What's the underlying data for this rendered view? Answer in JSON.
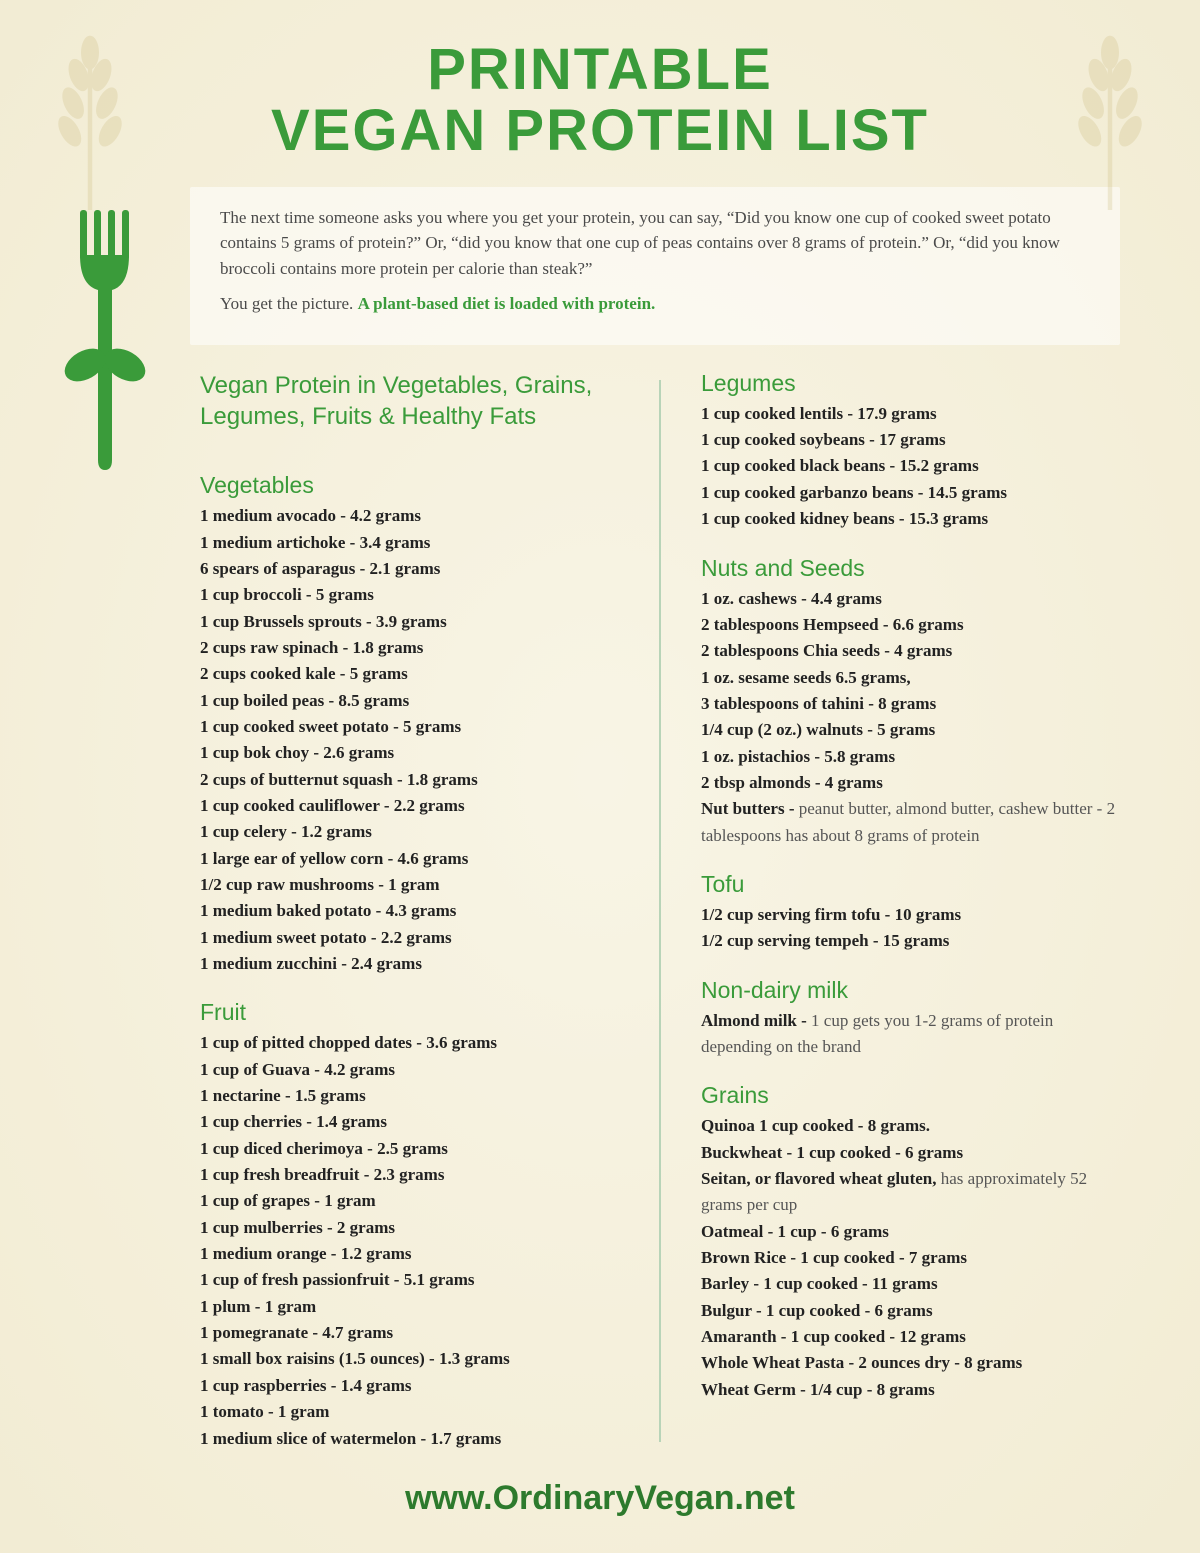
{
  "title_line1": "PRINTABLE",
  "title_line2": "VEGAN PROTEIN LIST",
  "intro_p1": "The next time someone asks you where you get your protein, you can say, “Did you know one cup of cooked sweet potato contains 5 grams of protein?” Or, “did you know that one cup of peas contains over 8 grams of protein.” Or, “did you know broccoli contains more protein per calorie than steak?”",
  "intro_p2a": "You get the picture. ",
  "intro_p2b": "A plant-based diet is loaded with protein.",
  "subtitle": "Vegan Protein in Vegetables, Grains, Legumes, Fruits & Healthy Fats",
  "footer": "www.OrdinaryVegan.net",
  "colors": {
    "green": "#3a9b3a",
    "bg": "#f5f0da",
    "text": "#222222"
  },
  "sections": {
    "vegetables": {
      "head": "Vegetables",
      "items": [
        "1 medium avocado - 4.2 grams",
        "1 medium artichoke - 3.4 grams",
        "6 spears of asparagus - 2.1 grams",
        "1 cup broccoli - 5 grams",
        "1 cup Brussels sprouts - 3.9 grams",
        "2 cups raw spinach - 1.8 grams",
        "2 cups cooked kale - 5 grams",
        "1 cup boiled peas - 8.5 grams",
        "1 cup cooked sweet potato - 5 grams",
        "1 cup bok choy - 2.6 grams",
        "2 cups of butternut squash - 1.8 grams",
        "1 cup cooked cauliflower - 2.2 grams",
        "1 cup celery - 1.2 grams",
        "1 large ear of yellow corn - 4.6 grams",
        "1/2 cup raw mushrooms - 1 gram",
        "1 medium baked potato - 4.3 grams",
        "1 medium sweet potato - 2.2 grams",
        "1 medium zucchini - 2.4 grams"
      ]
    },
    "fruit": {
      "head": "Fruit",
      "items": [
        "1 cup of  pitted chopped dates - 3.6 grams",
        "1 cup of Guava - 4.2 grams",
        "1 nectarine - 1.5 grams",
        "1 cup cherries  - 1.4 grams",
        "1 cup diced cherimoya - 2.5 grams",
        "1 cup fresh breadfruit - 2.3 grams",
        "1 cup of grapes - 1 gram",
        "1 cup mulberries - 2 grams",
        "1 medium orange - 1.2 grams",
        "1 cup of fresh passionfruit - 5.1 grams",
        "1 plum - 1 gram",
        "1 pomegranate - 4.7 grams",
        "1 small box raisins (1.5 ounces) - 1.3 grams",
        "1 cup raspberries - 1.4 grams",
        "1 tomato - 1 gram",
        "1 medium slice of watermelon - 1.7 grams"
      ]
    },
    "legumes": {
      "head": "Legumes",
      "items": [
        "1 cup cooked lentils - 17.9 grams",
        "1 cup cooked soybeans - 17 grams",
        "1 cup cooked black beans - 15.2 grams",
        "1 cup cooked garbanzo beans - 14.5 grams",
        "1 cup cooked kidney beans - 15.3 grams"
      ]
    },
    "nuts": {
      "head": "Nuts and Seeds",
      "items": [
        "1 oz. cashews - 4.4 grams",
        "2 tablespoons Hempseed - 6.6 grams",
        "2 tablespoons Chia seeds - 4 grams",
        "1 oz. sesame seeds 6.5 grams,",
        "3 tablespoons of tahini - 8 grams",
        "1/4 cup (2 oz.) walnuts - 5 grams",
        "1 oz. pistachios - 5.8 grams",
        "2 tbsp almonds - 4 grams"
      ],
      "butter_label": "Nut butters - ",
      "butter_note": "peanut butter, almond butter, cashew butter - 2 tablespoons has about 8 grams of protein"
    },
    "tofu": {
      "head": "Tofu",
      "items": [
        "1/2 cup serving firm tofu - 10 grams",
        "1/2 cup serving  tempeh - 15 grams"
      ]
    },
    "milk": {
      "head": "Non-dairy milk",
      "label": "Almond milk - ",
      "note": "1 cup gets you 1-2 grams of protein depending on the brand"
    },
    "grains": {
      "head": "Grains",
      "items": [
        "Quinoa 1 cup cooked - 8 grams.",
        "Buckwheat - 1 cup cooked - 6 grams"
      ],
      "seitan_label": "Seitan, or flavored wheat gluten, ",
      "seitan_note": "has approximately 52 grams per cup",
      "items2": [
        "Oatmeal - 1 cup - 6 grams",
        "Brown Rice - 1 cup cooked - 7 grams",
        "Barley - 1 cup cooked - 11 grams",
        "Bulgur - 1 cup cooked - 6 grams",
        "Amaranth - 1 cup cooked - 12 grams",
        "Whole Wheat Pasta - 2 ounces dry - 8 grams",
        "Wheat Germ - 1/4 cup - 8 grams"
      ]
    }
  }
}
